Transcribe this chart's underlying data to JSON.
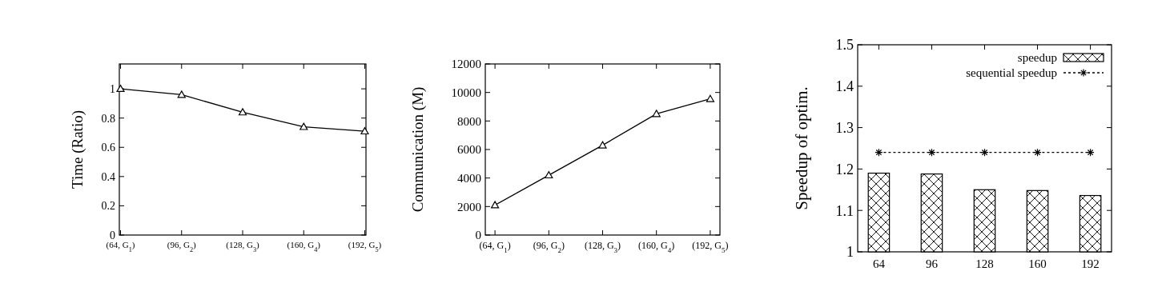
{
  "chart_data": [
    {
      "type": "line",
      "ylabel": "Time (Ratio)",
      "categories": [
        "(64, G$_{1}$)",
        "(96, G$_{2}$)",
        "(128, G$_{3}$)",
        "(160, G$_{4}$)",
        "(192, G$_{5}$)"
      ],
      "ylim": [
        0,
        1.17
      ],
      "yticks": [
        0,
        0.2,
        0.4,
        0.6,
        0.8,
        1
      ],
      "marker": "triangle",
      "legend": false,
      "grid": false,
      "series": [
        {
          "color": "#000000",
          "values": [
            1.0,
            0.96,
            0.84,
            0.74,
            0.71
          ]
        }
      ]
    },
    {
      "type": "line",
      "ylabel": "Communication (M)",
      "categories": [
        "(64, G$_{1}$)",
        "(96, G$_{2}$)",
        "(128, G$_{3}$)",
        "(160, G$_{4}$)",
        "(192, G$_{5}$)"
      ],
      "ylim": [
        0,
        12000
      ],
      "yticks": [
        0,
        2000,
        4000,
        6000,
        8000,
        10000,
        12000
      ],
      "marker": "triangle",
      "legend": false,
      "grid": false,
      "series": [
        {
          "color": "#000000",
          "values": [
            2100,
            4200,
            6300,
            8500,
            9550
          ]
        }
      ]
    },
    {
      "type": "bar",
      "ylabel": "Speedup of optim.",
      "categories": [
        "64",
        "96",
        "128",
        "160",
        "192"
      ],
      "ylim": [
        1,
        1.5
      ],
      "yticks": [
        1,
        1.1,
        1.2,
        1.3,
        1.4,
        1.5
      ],
      "legend": "top right",
      "grid": false,
      "series": [
        {
          "name": "speedup",
          "color": "#000000",
          "values": [
            1.19,
            1.188,
            1.15,
            1.148,
            1.136
          ]
        },
        {
          "name": "sequential speedup",
          "type": "line",
          "marker": "cross",
          "line_style": "dashed",
          "color": "#000000",
          "values": [
            1.24,
            1.24,
            1.24,
            1.24,
            1.24
          ]
        }
      ]
    }
  ]
}
